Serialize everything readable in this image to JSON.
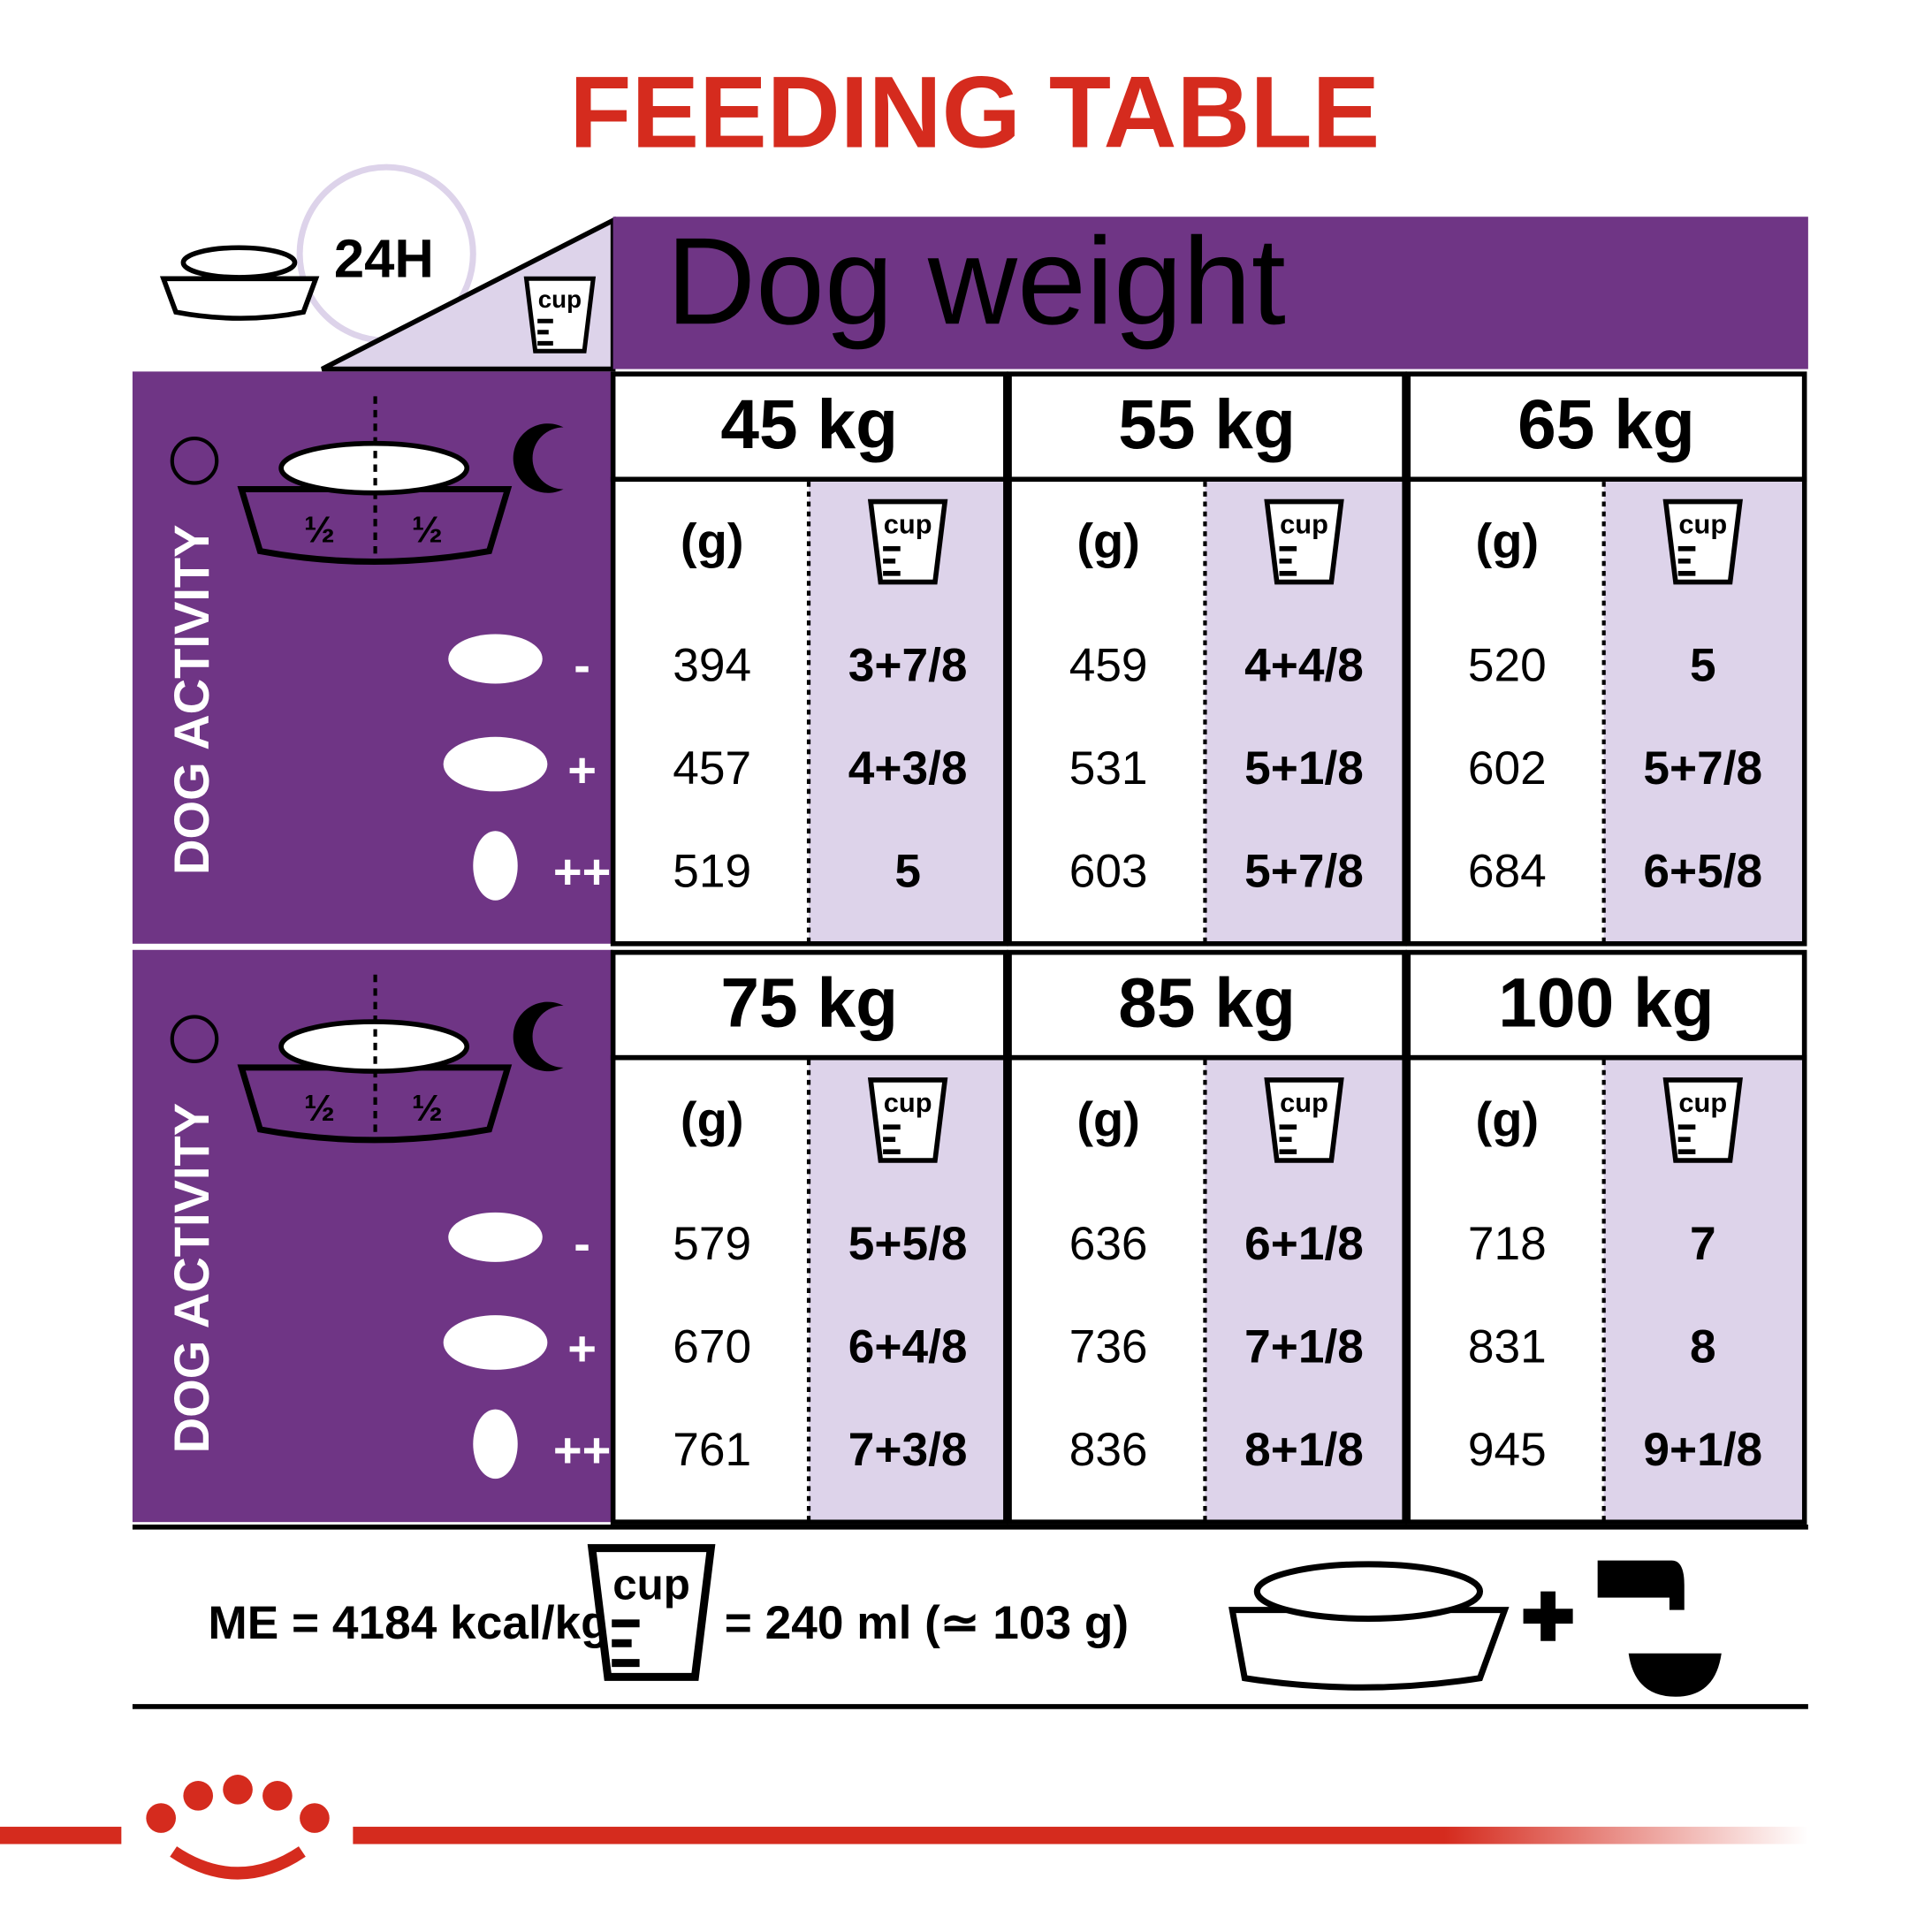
{
  "header": {
    "title": "FEEDING TABLE",
    "duration": "24H",
    "cup_icon": "cup",
    "weight_heading": "Dog weight"
  },
  "panels": [
    {
      "activity_label": "DOG ACTIVITY",
      "split": [
        "½",
        "½"
      ],
      "levels": [
        "-",
        "+",
        "++"
      ],
      "weights": [
        {
          "label": "45 kg",
          "gram_header": "(g)",
          "cup_header": "cup",
          "rows": [
            [
              394,
              "3+7/8"
            ],
            [
              457,
              "4+3/8"
            ],
            [
              519,
              "5"
            ]
          ]
        },
        {
          "label": "55 kg",
          "gram_header": "(g)",
          "cup_header": "cup",
          "rows": [
            [
              459,
              "4+4/8"
            ],
            [
              531,
              "5+1/8"
            ],
            [
              603,
              "5+7/8"
            ]
          ]
        },
        {
          "label": "65 kg",
          "gram_header": "(g)",
          "cup_header": "cup",
          "rows": [
            [
              520,
              "5"
            ],
            [
              602,
              "5+7/8"
            ],
            [
              684,
              "6+5/8"
            ]
          ]
        }
      ]
    },
    {
      "activity_label": "DOG ACTIVITY",
      "split": [
        "½",
        "½"
      ],
      "levels": [
        "-",
        "+",
        "++"
      ],
      "weights": [
        {
          "label": "75 kg",
          "gram_header": "(g)",
          "cup_header": "cup",
          "rows": [
            [
              579,
              "5+5/8"
            ],
            [
              670,
              "6+4/8"
            ],
            [
              761,
              "7+3/8"
            ]
          ]
        },
        {
          "label": "85 kg",
          "gram_header": "(g)",
          "cup_header": "cup",
          "rows": [
            [
              636,
              "6+1/8"
            ],
            [
              736,
              "7+1/8"
            ],
            [
              836,
              "8+1/8"
            ]
          ]
        },
        {
          "label": "100 kg",
          "gram_header": "(g)",
          "cup_header": "cup",
          "rows": [
            [
              718,
              "7"
            ],
            [
              831,
              "8"
            ],
            [
              945,
              "9+1/8"
            ]
          ]
        }
      ]
    }
  ],
  "footer": {
    "energy": "ME = 4184 kcal/kg",
    "cup_icon": "cup",
    "cup_equivalence": "= 240 ml (≃ 103 g)"
  }
}
